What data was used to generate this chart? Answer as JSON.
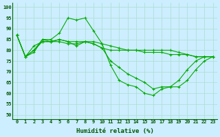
{
  "title": "",
  "xlabel": "Humidité relative (%)",
  "ylabel": "",
  "bg_color": "#cceeff",
  "grid_color": "#aaddcc",
  "line_color": "#00aa00",
  "xlim": [
    -0.5,
    23.5
  ],
  "ylim": [
    48,
    102
  ],
  "yticks": [
    50,
    55,
    60,
    65,
    70,
    75,
    80,
    85,
    90,
    95,
    100
  ],
  "xticks": [
    0,
    1,
    2,
    3,
    4,
    5,
    6,
    7,
    8,
    9,
    10,
    11,
    12,
    13,
    14,
    15,
    16,
    17,
    18,
    19,
    20,
    21,
    22,
    23
  ],
  "series": [
    [
      87,
      77,
      79,
      85,
      85,
      88,
      95,
      94,
      95,
      89,
      83,
      73,
      66,
      64,
      63,
      60,
      59,
      62,
      63,
      63,
      66,
      71,
      75,
      77
    ],
    [
      87,
      77,
      80,
      85,
      84,
      85,
      84,
      82,
      84,
      83,
      81,
      75,
      72,
      69,
      67,
      65,
      62,
      63,
      63,
      66,
      71,
      75,
      77,
      77
    ],
    [
      87,
      77,
      80,
      84,
      84,
      84,
      83,
      83,
      84,
      83,
      81,
      80,
      80,
      80,
      80,
      79,
      79,
      79,
      78,
      78,
      78,
      77,
      77,
      77
    ],
    [
      87,
      77,
      82,
      84,
      84,
      85,
      84,
      84,
      84,
      84,
      83,
      82,
      81,
      80,
      80,
      80,
      80,
      80,
      80,
      79,
      78,
      77,
      77,
      77
    ]
  ]
}
